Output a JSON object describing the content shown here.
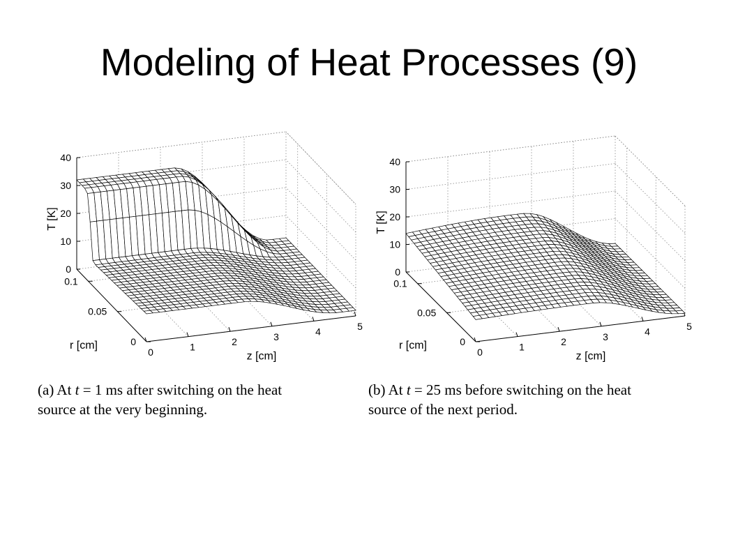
{
  "slide": {
    "title": "Modeling of Heat Processes (9)"
  },
  "panels": [
    {
      "caption_prefix": "(a) At ",
      "caption_var": "t",
      "caption_eq": " = 1",
      "caption_line1_rest": " ms after switching on the heat",
      "caption_line2": "source at the very beginning."
    },
    {
      "caption_prefix": "(b) At ",
      "caption_var": "t",
      "caption_eq": " = 25",
      "caption_line1_rest": " ms before switching on the heat",
      "caption_line2": "source of the next period."
    }
  ],
  "chart_data": [
    {
      "type": "surface",
      "xlabel": "z [cm]",
      "ylabel": "r [cm]",
      "zlabel": "T [K]",
      "xlim": [
        0,
        5
      ],
      "ylim": [
        0,
        0.12
      ],
      "zlim": [
        0,
        40
      ],
      "xticks": [
        "0",
        "1",
        "2",
        "3",
        "4",
        "5"
      ],
      "yticks": [
        "0",
        "0.05",
        "0.1"
      ],
      "zticks": [
        "0",
        "10",
        "20",
        "30",
        "40"
      ],
      "grid": true,
      "samples": [
        {
          "z": 0,
          "T_at_r_max": 32,
          "T_at_r_0": 10
        },
        {
          "z": 2,
          "T_at_r_max": 32,
          "T_at_r_0": 8
        },
        {
          "z": 3.5,
          "T_at_r_max": 12,
          "T_at_r_0": 7
        },
        {
          "z": 5,
          "T_at_r_max": 2,
          "T_at_r_0": 2
        }
      ]
    },
    {
      "type": "surface",
      "xlabel": "z [cm]",
      "ylabel": "r [cm]",
      "zlabel": "T [K]",
      "xlim": [
        0,
        5
      ],
      "ylim": [
        0,
        0.12
      ],
      "zlim": [
        0,
        40
      ],
      "xticks": [
        "0",
        "1",
        "2",
        "3",
        "4",
        "5"
      ],
      "yticks": [
        "0",
        "0.05",
        "0.1"
      ],
      "zticks": [
        "0",
        "10",
        "20",
        "30",
        "40"
      ],
      "grid": true,
      "samples": [
        {
          "z": 0,
          "T_at_r_max": 14,
          "T_at_r_0": 9
        },
        {
          "z": 2.5,
          "T_at_r_max": 16,
          "T_at_r_0": 8
        },
        {
          "z": 4,
          "T_at_r_max": 10,
          "T_at_r_0": 6
        },
        {
          "z": 5,
          "T_at_r_max": 1,
          "T_at_r_0": 1
        }
      ]
    }
  ]
}
